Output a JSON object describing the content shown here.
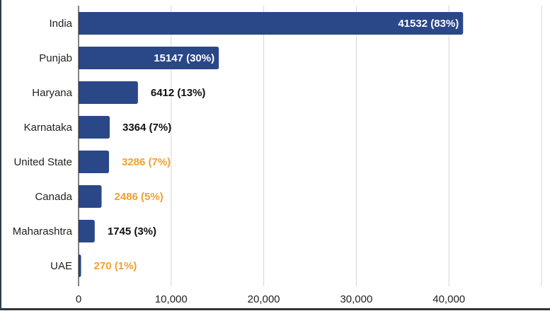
{
  "chart_data": {
    "type": "bar",
    "orientation": "horizontal",
    "categories": [
      "India",
      "Punjab",
      "Haryana",
      "Karnataka",
      "United State",
      "Canada",
      "Maharashtra",
      "UAE"
    ],
    "values": [
      41532,
      15147,
      6412,
      3364,
      3286,
      2486,
      1745,
      270
    ],
    "data_labels": [
      "41532 (83%)",
      "15147 (30%)",
      "6412 (13%)",
      "3364 (7%)",
      "3286 (7%)",
      "2486 (5%)",
      "1745 (3%)",
      "270 (1%)"
    ],
    "label_colors": [
      "#ffffff",
      "#ffffff",
      "#111111",
      "#111111",
      "#f0a030",
      "#f0a030",
      "#111111",
      "#f0a030"
    ],
    "label_inside": [
      true,
      true,
      false,
      false,
      false,
      false,
      false,
      false
    ],
    "xlim": [
      0,
      50000
    ],
    "xticks": [
      0,
      10000,
      20000,
      30000,
      40000
    ],
    "xtick_labels": [
      "0",
      "10,000",
      "20,000",
      "30,000",
      "40,000"
    ],
    "grid": true,
    "bar_color": "#2a4788",
    "title": "",
    "xlabel": "",
    "ylabel": ""
  }
}
